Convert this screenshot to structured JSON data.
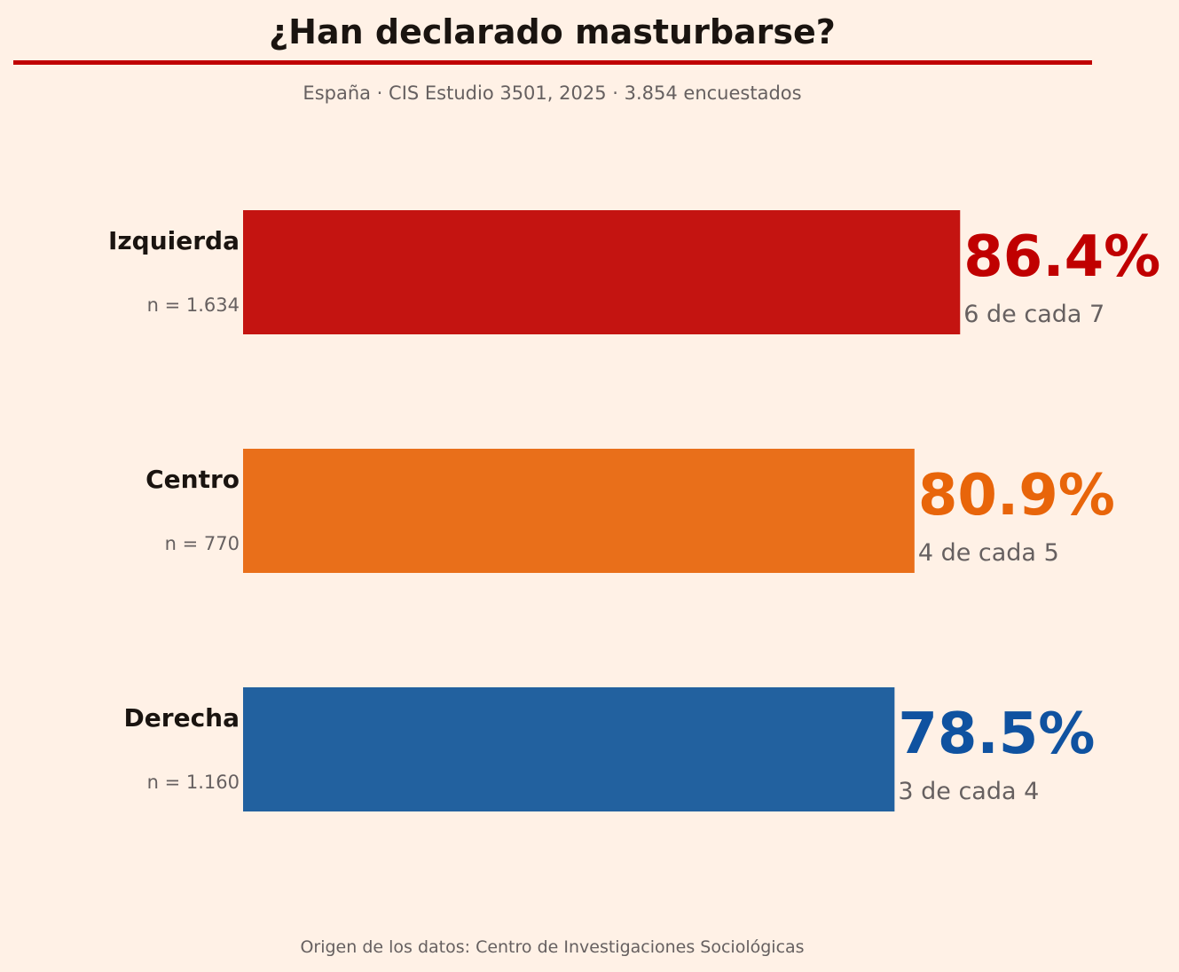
{
  "title": "¿Han declarado masturbarse?",
  "subtitle": "España · CIS Estudio 3501, 2025 · 3.854 encuestados",
  "source": "Origen de los datos: Centro de Investigaciones Sociológicas",
  "chart_data": {
    "type": "bar",
    "orientation": "horizontal",
    "categories": [
      "Izquierda",
      "Centro",
      "Derecha"
    ],
    "values": [
      86.4,
      80.9,
      78.5
    ],
    "unit": "%",
    "xlim": [
      0,
      100
    ],
    "grid": false,
    "sample_labels": [
      "n = 1.634",
      "n = 770",
      "n = 1.160"
    ],
    "value_labels": [
      "86.4%",
      "80.9%",
      "78.5%"
    ],
    "ratio_labels": [
      "6 de cada 7",
      "4 de cada 5",
      "3 de cada 4"
    ],
    "bar_colors": [
      "#c41411",
      "#e96f1a",
      "#22619f"
    ],
    "value_label_colors": [
      "#c00000",
      "#e8650a",
      "#0f52a0"
    ]
  }
}
